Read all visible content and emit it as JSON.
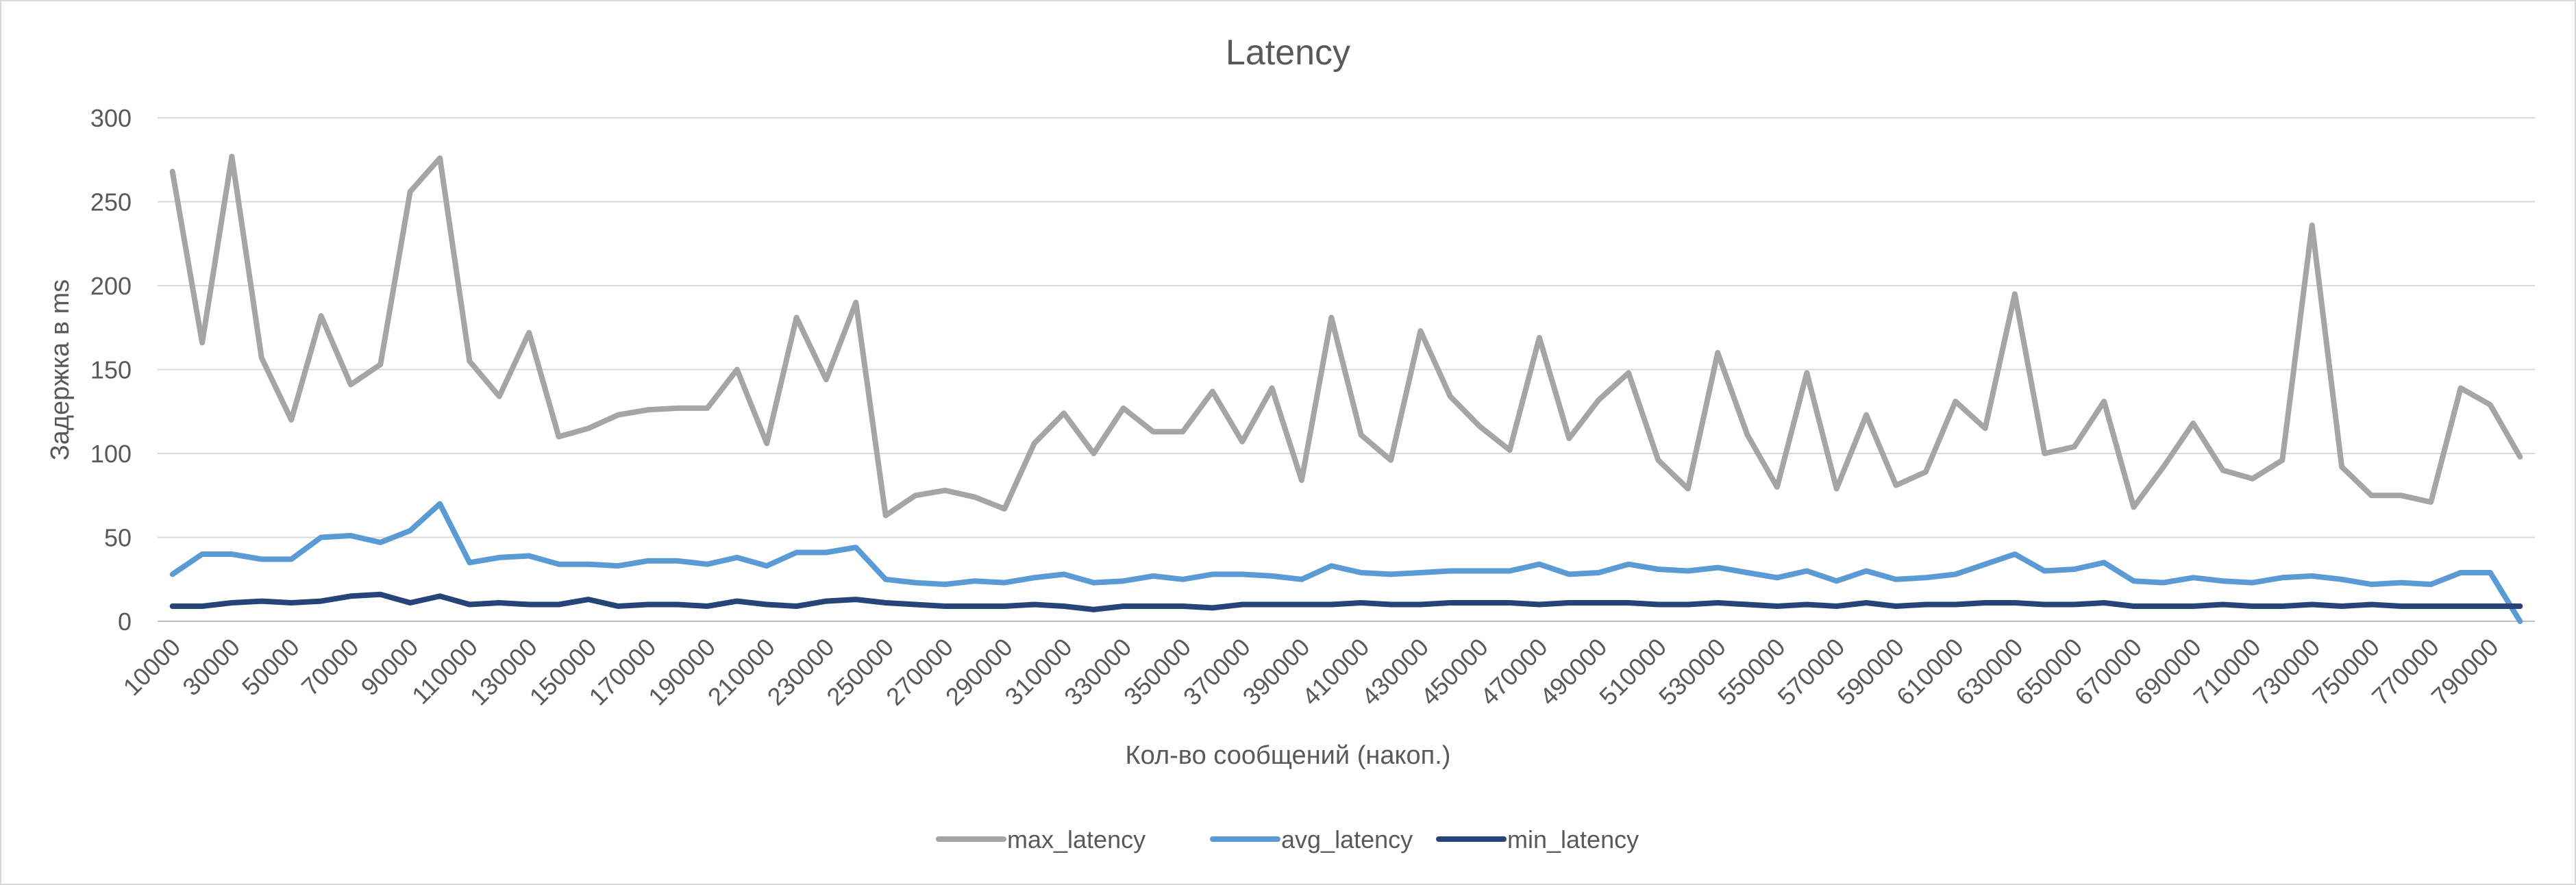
{
  "chart_data": {
    "type": "line",
    "title": "Latency",
    "xlabel": "Кол-во сообщений (накоп.)",
    "ylabel": "Задержка в ms",
    "ylim": [
      0,
      300
    ],
    "yticks": [
      0,
      50,
      100,
      150,
      200,
      250,
      300
    ],
    "grid": true,
    "legend": "bottom",
    "x": [
      10000,
      20000,
      30000,
      40000,
      50000,
      60000,
      70000,
      80000,
      90000,
      100000,
      110000,
      120000,
      130000,
      140000,
      150000,
      160000,
      170000,
      180000,
      190000,
      200000,
      210000,
      220000,
      230000,
      240000,
      250000,
      260000,
      270000,
      280000,
      290000,
      300000,
      310000,
      320000,
      330000,
      340000,
      350000,
      360000,
      370000,
      380000,
      390000,
      400000,
      410000,
      420000,
      430000,
      440000,
      450000,
      460000,
      470000,
      480000,
      490000,
      500000,
      510000,
      520000,
      530000,
      540000,
      550000,
      560000,
      570000,
      580000,
      590000,
      600000,
      610000,
      620000,
      630000,
      640000,
      650000,
      660000,
      670000,
      680000,
      690000,
      700000,
      710000,
      720000,
      730000,
      740000,
      750000,
      760000,
      770000,
      780000,
      790000,
      800000
    ],
    "series": [
      {
        "name": "max_latency",
        "color": "#a5a5a5",
        "values": [
          268,
          166,
          277,
          157,
          120,
          182,
          141,
          153,
          256,
          276,
          155,
          134,
          172,
          110,
          115,
          123,
          126,
          127,
          127,
          150,
          106,
          181,
          144,
          190,
          63,
          75,
          78,
          74,
          67,
          106,
          124,
          100,
          127,
          113,
          113,
          137,
          107,
          139,
          84,
          181,
          111,
          96,
          173,
          134,
          116,
          102,
          169,
          109,
          132,
          148,
          96,
          79,
          160,
          111,
          80,
          148,
          79,
          123,
          81,
          89,
          131,
          115,
          195,
          100,
          104,
          131,
          68,
          92,
          118,
          90,
          85,
          96,
          236,
          92,
          75,
          75,
          71,
          139,
          129,
          98
        ]
      },
      {
        "name": "avg_latency",
        "color": "#5b9bd5",
        "values": [
          28,
          40,
          40,
          37,
          37,
          50,
          51,
          47,
          54,
          70,
          35,
          38,
          39,
          34,
          34,
          33,
          36,
          36,
          34,
          38,
          33,
          41,
          41,
          44,
          25,
          23,
          22,
          24,
          23,
          26,
          28,
          23,
          24,
          27,
          25,
          28,
          28,
          27,
          25,
          33,
          29,
          28,
          29,
          30,
          30,
          30,
          34,
          28,
          29,
          34,
          31,
          30,
          32,
          29,
          26,
          30,
          24,
          30,
          25,
          26,
          28,
          34,
          40,
          30,
          31,
          35,
          24,
          23,
          26,
          24,
          23,
          26,
          27,
          25,
          22,
          23,
          22,
          29,
          29,
          0
        ]
      },
      {
        "name": "min_latency",
        "color": "#264478",
        "values": [
          9,
          9,
          11,
          12,
          11,
          12,
          15,
          16,
          11,
          15,
          10,
          11,
          10,
          10,
          13,
          9,
          10,
          10,
          9,
          12,
          10,
          9,
          12,
          13,
          11,
          10,
          9,
          9,
          9,
          10,
          9,
          7,
          9,
          9,
          9,
          8,
          10,
          10,
          10,
          10,
          11,
          10,
          10,
          11,
          11,
          11,
          10,
          11,
          11,
          11,
          10,
          10,
          11,
          10,
          9,
          10,
          9,
          11,
          9,
          10,
          10,
          11,
          11,
          10,
          10,
          11,
          9,
          9,
          9,
          10,
          9,
          9,
          10,
          9,
          10,
          9,
          9,
          9,
          9,
          9
        ]
      }
    ]
  }
}
